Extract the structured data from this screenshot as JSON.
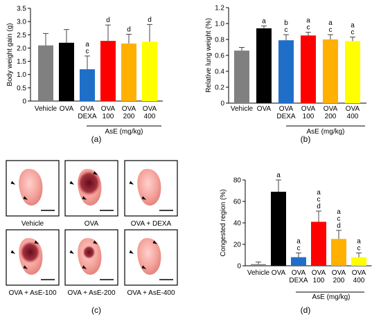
{
  "chart_data": [
    {
      "panel": "(a)",
      "type": "bar",
      "ylabel": "Body weight gain  (g)",
      "ylim": [
        0,
        3.5
      ],
      "yticks": [
        "0",
        "0.5",
        "1.0",
        "1.5",
        "2.0",
        "2.5",
        "3.0",
        "3.5"
      ],
      "categories": [
        [
          "Vehicle"
        ],
        [
          "OVA"
        ],
        [
          "OVA",
          "DEXA"
        ],
        [
          "OVA",
          "100"
        ],
        [
          "OVA",
          "200"
        ],
        [
          "OVA",
          "400"
        ]
      ],
      "values": [
        2.1,
        2.2,
        1.2,
        2.27,
        2.17,
        2.24
      ],
      "errors": [
        0.45,
        0.5,
        0.5,
        0.6,
        0.35,
        0.65
      ],
      "colors": [
        "#808080",
        "#000000",
        "#1f6fc9",
        "#ff0000",
        "#ffb000",
        "#ffff00"
      ],
      "annotations": [
        [],
        [],
        [
          "a",
          "c"
        ],
        [
          "d"
        ],
        [
          "d"
        ],
        [
          "d"
        ]
      ],
      "group_label": "AsE (mg/kg)"
    },
    {
      "panel": "(b)",
      "type": "bar",
      "ylabel": "Relative lung weight (%)",
      "ylim": [
        0,
        1.2
      ],
      "yticks": [
        "0",
        "0.2",
        "0.4",
        "0.6",
        "0.8",
        "1.0",
        "1.2"
      ],
      "categories": [
        [
          "Vehicle"
        ],
        [
          "OVA"
        ],
        [
          "OVA",
          "DEXA"
        ],
        [
          "OVA",
          "100"
        ],
        [
          "OVA",
          "200"
        ],
        [
          "OVA",
          "400"
        ]
      ],
      "values": [
        0.66,
        0.94,
        0.79,
        0.85,
        0.8,
        0.78
      ],
      "errors": [
        0.04,
        0.03,
        0.07,
        0.04,
        0.06,
        0.05
      ],
      "colors": [
        "#808080",
        "#000000",
        "#1f6fc9",
        "#ff0000",
        "#ffb000",
        "#ffff00"
      ],
      "annotations": [
        [],
        [
          "a"
        ],
        [
          "b",
          "c"
        ],
        [
          "a",
          "c"
        ],
        [
          "a",
          "c"
        ],
        [
          "a",
          "c"
        ]
      ],
      "group_label": "AsE (mg/kg)"
    },
    {
      "panel": "(d)",
      "type": "bar",
      "ylabel": "Congested region (%)",
      "ylim": [
        0,
        80
      ],
      "yticks": [
        "0",
        "20",
        "40",
        "60",
        "80"
      ],
      "categories": [
        [
          "Vehicle"
        ],
        [
          "OVA"
        ],
        [
          "OVA",
          "DEXA"
        ],
        [
          "OVA",
          "100"
        ],
        [
          "OVA",
          "200"
        ],
        [
          "OVA",
          "400"
        ]
      ],
      "values": [
        1.5,
        69,
        8,
        41,
        25,
        8
      ],
      "errors": [
        2,
        11,
        4,
        10,
        8,
        4
      ],
      "colors": [
        "#808080",
        "#000000",
        "#1f6fc9",
        "#ff0000",
        "#ffb000",
        "#ffff00"
      ],
      "annotations": [
        [],
        [
          "a"
        ],
        [
          "a",
          "c"
        ],
        [
          "a",
          "c",
          "d"
        ],
        [
          "a",
          "c",
          "d"
        ],
        [
          "a",
          "c"
        ]
      ],
      "group_label": "AsE (mg/kg)"
    }
  ],
  "photo_panel": {
    "panel": "(c)",
    "captions": [
      "Vehicle",
      "OVA",
      "OVA + DEXA",
      "OVA + AsE-100",
      "OVA + AsE-200",
      "OVA + AsE-400"
    ]
  }
}
